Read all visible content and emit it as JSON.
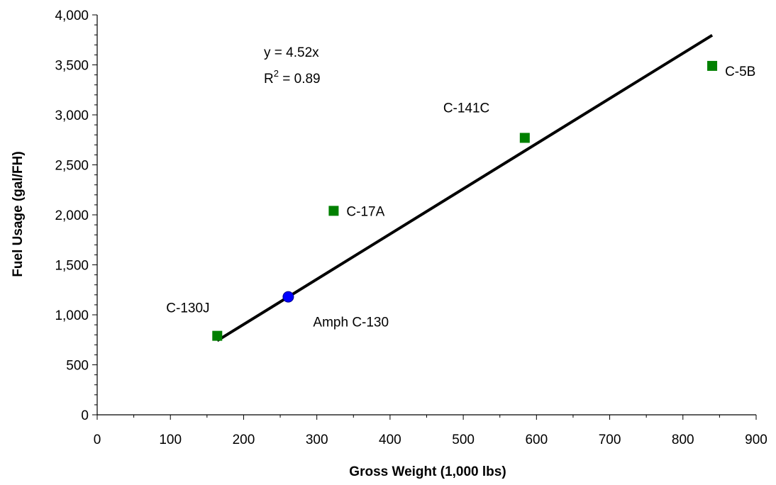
{
  "chart_data": {
    "type": "scatter",
    "title": "",
    "xlabel": "Gross Weight (1,000 lbs)",
    "ylabel": "Fuel Usage (gal/FH)",
    "xlim": [
      0,
      900
    ],
    "ylim": [
      0,
      4000
    ],
    "x_ticks": [
      0,
      100,
      200,
      300,
      400,
      500,
      600,
      700,
      800,
      900
    ],
    "x_tick_labels": [
      "0",
      "100",
      "200",
      "300",
      "400",
      "500",
      "600",
      "700",
      "800",
      "900"
    ],
    "y_ticks": [
      0,
      500,
      1000,
      1500,
      2000,
      2500,
      3000,
      3500,
      4000
    ],
    "y_tick_labels": [
      "0",
      "500",
      "1,000",
      "1,500",
      "2,000",
      "2,500",
      "3,000",
      "3,500",
      "4,000"
    ],
    "grid": false,
    "series": [
      {
        "marker": "square",
        "color": "#008000",
        "points": [
          {
            "label": "C-130J",
            "x": 164,
            "y": 790
          },
          {
            "label": "C-17A",
            "x": 323,
            "y": 2040
          },
          {
            "label": "C-141C",
            "x": 584,
            "y": 2770
          },
          {
            "label": "C-5B",
            "x": 840,
            "y": 3490
          }
        ]
      },
      {
        "marker": "circle",
        "color": "#0000ff",
        "points": [
          {
            "label": "Amph C-130",
            "x": 261,
            "y": 1180
          }
        ]
      }
    ],
    "trendline": {
      "slope": 4.52,
      "x_range": [
        164,
        840
      ],
      "color": "#000000",
      "equation_text": "y = 4.52x",
      "r2_prefix": "R",
      "r2_superscript": "2",
      "r2_suffix": " = 0.89"
    }
  }
}
